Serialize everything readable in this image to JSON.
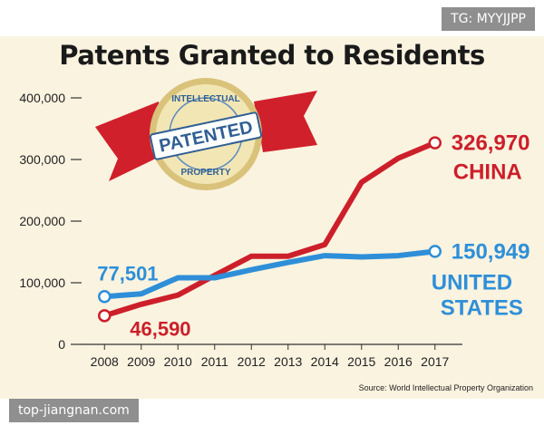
{
  "badges": {
    "top_right": "TG: MYYJJPP",
    "bottom_left": "top-jiangnan.com"
  },
  "seal": {
    "ring_top": "INTELLECTUAL",
    "ring_bottom": "PROPERTY",
    "center": "PATENTED"
  },
  "colors": {
    "china": "#cc1f2a",
    "united_states": "#2e8fd8",
    "background": "#faf3e0"
  },
  "chart_data": {
    "type": "line",
    "title": "Patents Granted to Residents",
    "xlabel": "",
    "ylabel": "",
    "x": [
      "2008",
      "2009",
      "2010",
      "2011",
      "2012",
      "2013",
      "2014",
      "2015",
      "2016",
      "2017"
    ],
    "ylim": [
      0,
      400000
    ],
    "yticks": [
      "0",
      "100,000",
      "200,000",
      "300,000",
      "400,000"
    ],
    "yticks_values": [
      0,
      100000,
      200000,
      300000,
      400000
    ],
    "grid": false,
    "series": [
      {
        "name": "CHINA",
        "values": [
          46590,
          65000,
          80000,
          112000,
          143000,
          143000,
          162000,
          263000,
          302000,
          326970
        ]
      },
      {
        "name": "UNITED STATES",
        "values": [
          77501,
          82000,
          108000,
          108000,
          121000,
          133000,
          144000,
          142000,
          144000,
          150949
        ]
      }
    ],
    "annotations": {
      "china_end": "326,970",
      "us_end": "150,949",
      "china_start": "46,590",
      "us_start": "77,501"
    },
    "source": "Source: World Intellectual Property Organization"
  }
}
